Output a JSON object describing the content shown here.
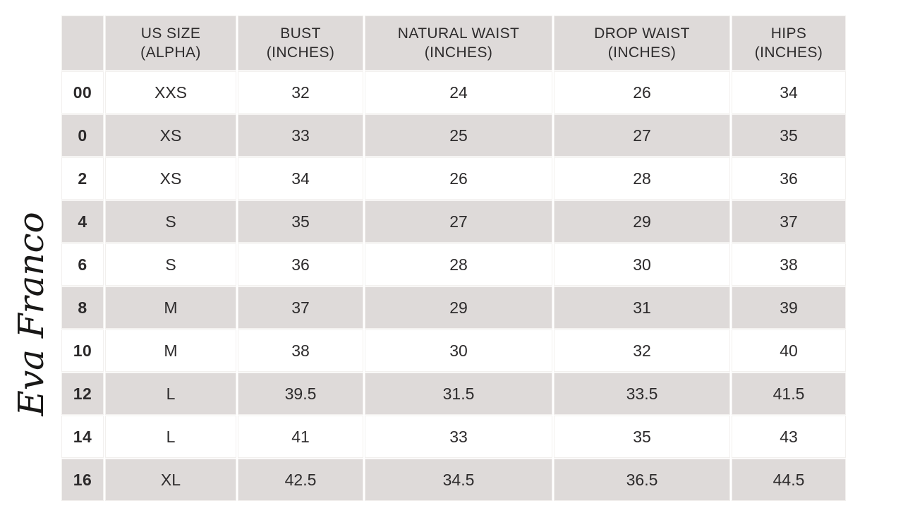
{
  "brand": {
    "logo_text": "Eva Franco"
  },
  "theme": {
    "header_bg": "#dedad9",
    "row_bg": "#ffffff",
    "row_alt_bg": "#dedad9",
    "gap_color": "#f2f0ee",
    "text_color": "#2d2b2c",
    "logo_color": "#191817"
  },
  "table": {
    "headers": [
      "",
      "US SIZE\n(ALPHA)",
      "BUST\n(INCHES)",
      "NATURAL WAIST\n(INCHES)",
      "DROP WAIST\n(INCHES)",
      "HIPS\n(INCHES)"
    ]
  },
  "chart_data": {
    "type": "table",
    "columns": [
      "",
      "US SIZE (ALPHA)",
      "BUST (INCHES)",
      "NATURAL WAIST (INCHES)",
      "DROP WAIST (INCHES)",
      "HIPS (INCHES)"
    ],
    "rows": [
      [
        "00",
        "XXS",
        "32",
        "24",
        "26",
        "34"
      ],
      [
        "0",
        "XS",
        "33",
        "25",
        "27",
        "35"
      ],
      [
        "2",
        "XS",
        "34",
        "26",
        "28",
        "36"
      ],
      [
        "4",
        "S",
        "35",
        "27",
        "29",
        "37"
      ],
      [
        "6",
        "S",
        "36",
        "28",
        "30",
        "38"
      ],
      [
        "8",
        "M",
        "37",
        "29",
        "31",
        "39"
      ],
      [
        "10",
        "M",
        "38",
        "30",
        "32",
        "40"
      ],
      [
        "12",
        "L",
        "39.5",
        "31.5",
        "33.5",
        "41.5"
      ],
      [
        "14",
        "L",
        "41",
        "33",
        "35",
        "43"
      ],
      [
        "16",
        "XL",
        "42.5",
        "34.5",
        "36.5",
        "44.5"
      ]
    ]
  }
}
